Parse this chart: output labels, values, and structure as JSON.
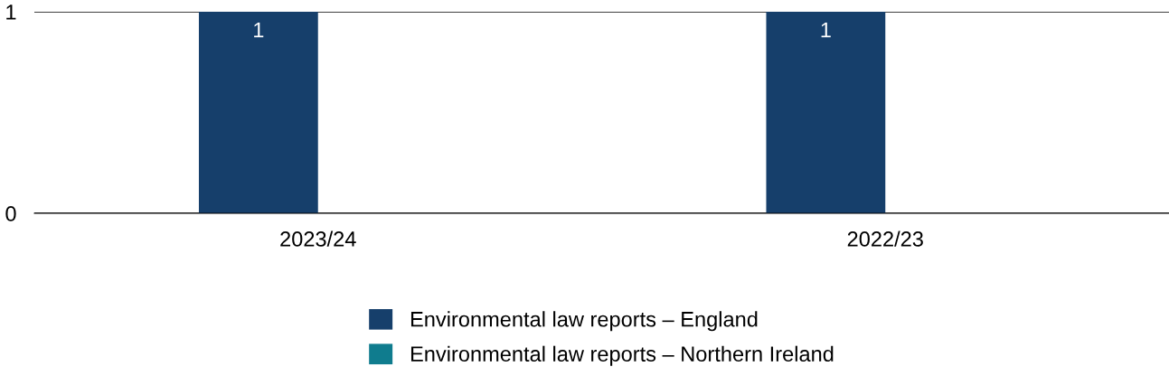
{
  "chart_data": {
    "type": "bar",
    "categories": [
      "2023/24",
      "2022/23"
    ],
    "series": [
      {
        "name": "Environmental law reports – England",
        "color": "#163f6b",
        "values": [
          1,
          1
        ],
        "value_labels": [
          "1",
          "1"
        ]
      },
      {
        "name": "Environmental law reports – Northern Ireland",
        "color": "#0f7c8e",
        "values": [
          0,
          0
        ],
        "value_labels": [
          null,
          null
        ]
      }
    ],
    "ylim": [
      0,
      1
    ],
    "yticks": [
      0,
      1
    ],
    "grid": "y",
    "legend": "bottom"
  }
}
